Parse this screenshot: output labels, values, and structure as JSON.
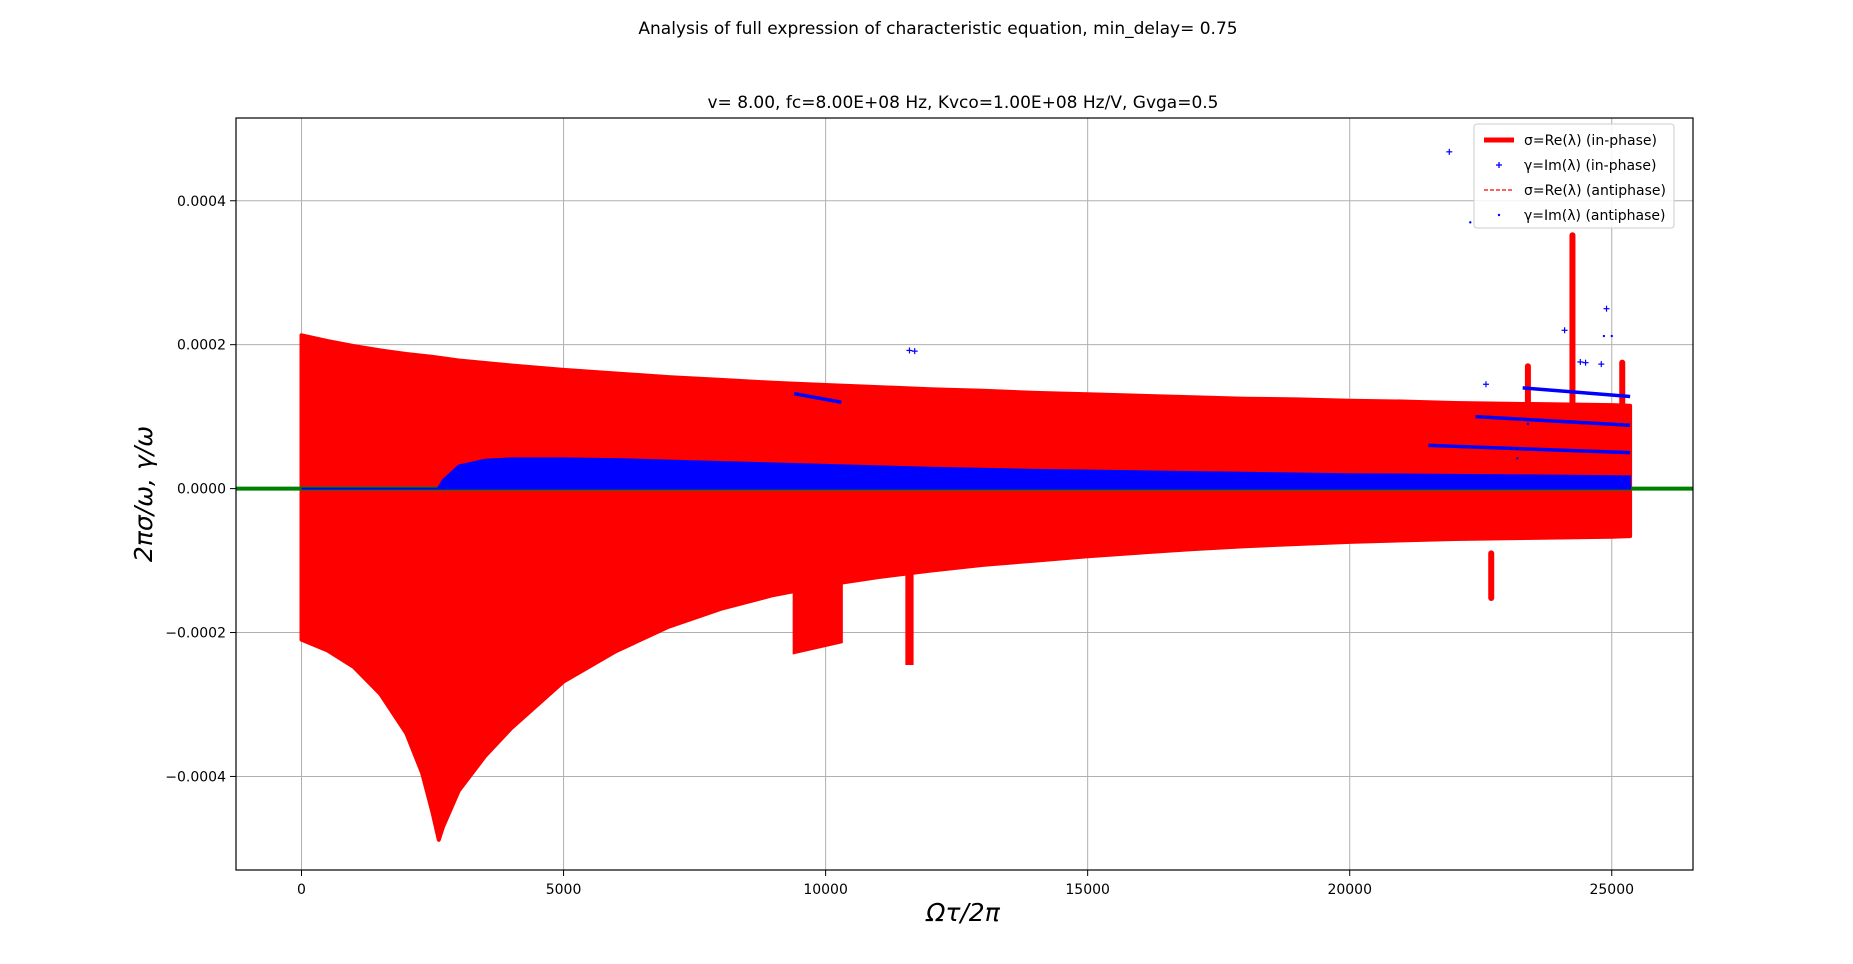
{
  "chart_data": {
    "type": "line",
    "suptitle": "Analysis of full expression of characteristic equation, min_delay= 0.75",
    "title": "v= 8.00, fc=8.00E+08 Hz, Kvco=1.00E+08 Hz/V, Gvga=0.5",
    "xlabel": "Ωτ/2π",
    "ylabel": "2πσ/ω, γ/ω",
    "xlim": [
      -1250,
      26550
    ],
    "ylim": [
      -0.00053,
      0.000515
    ],
    "x_ticks": [
      0,
      5000,
      10000,
      15000,
      20000,
      25000
    ],
    "x_tick_labels": [
      "0",
      "5000",
      "10000",
      "15000",
      "20000",
      "25000"
    ],
    "y_ticks": [
      -0.0004,
      -0.0002,
      0.0,
      0.0002,
      0.0004
    ],
    "y_tick_labels": [
      "−0.0004",
      "−0.0002",
      "0.0000",
      "0.0002",
      "0.0004"
    ],
    "grid": true,
    "legend_position": "upper-right",
    "colors": {
      "red": "#ff0000",
      "blue": "#0000ff",
      "green": "#008000"
    },
    "zero_line": {
      "y": 0.0,
      "color": "#008000"
    },
    "legend": [
      {
        "label": "σ=Re(λ) (in-phase)",
        "marker": "thick-line",
        "color": "#ff0000"
      },
      {
        "label": "γ=Im(λ) (in-phase)",
        "marker": "plus",
        "color": "#0000ff"
      },
      {
        "label": "σ=Re(λ) (antiphase)",
        "marker": "dashed-line",
        "color": "#ff0000"
      },
      {
        "label": "γ=Im(λ) (antiphase)",
        "marker": "dot",
        "color": "#0000ff"
      }
    ],
    "series": [
      {
        "name": "σ=Re(λ) (in-phase)",
        "color": "#ff0000",
        "upper_envelope": {
          "x": [
            0,
            500,
            1000,
            1500,
            2000,
            2500,
            3000,
            4000,
            5000,
            6000,
            7000,
            8000,
            9000,
            10000,
            11000,
            12000,
            13000,
            14000,
            15000,
            16000,
            17000,
            18000,
            19000,
            20000,
            21000,
            22000,
            23000,
            24000,
            25000,
            25350
          ],
          "y": [
            0.000213,
            0.000205,
            0.000198,
            0.000192,
            0.000187,
            0.000183,
            0.000178,
            0.000171,
            0.000165,
            0.00016,
            0.000155,
            0.000151,
            0.000147,
            0.000144,
            0.000141,
            0.000138,
            0.000136,
            0.000133,
            0.000131,
            0.000129,
            0.000127,
            0.000125,
            0.000124,
            0.000122,
            0.000121,
            0.000119,
            0.000118,
            0.000117,
            0.000116,
            0.000115
          ]
        },
        "lower_envelope": {
          "x": [
            0,
            500,
            1000,
            1500,
            2000,
            2300,
            2500,
            2620,
            2700,
            3000,
            3500,
            4000,
            5000,
            6000,
            7000,
            8000,
            9000,
            10000,
            11000,
            12000,
            13000,
            14000,
            15000,
            16000,
            17000,
            18000,
            19000,
            20000,
            21000,
            22000,
            23000,
            24000,
            25000,
            25350
          ],
          "y": [
            -0.00021,
            -0.000225,
            -0.000248,
            -0.000285,
            -0.00034,
            -0.000395,
            -0.00045,
            -0.000488,
            -0.00047,
            -0.00042,
            -0.000372,
            -0.000333,
            -0.000268,
            -0.000226,
            -0.000192,
            -0.000167,
            -0.000148,
            -0.000134,
            -0.000123,
            -0.000114,
            -0.000106,
            -0.0001,
            -9.4e-05,
            -8.9e-05,
            -8.4e-05,
            -8e-05,
            -7.7e-05,
            -7.4e-05,
            -7.2e-05,
            -7e-05,
            -6.9e-05,
            -6.8e-05,
            -6.7e-05,
            -6.6e-05
          ]
        },
        "excursions": [
          {
            "x": [
              9400,
              10300
            ],
            "y": [
              -0.000228,
              -0.000213
            ]
          },
          {
            "x": [
              11550,
              11650
            ],
            "y": [
              -0.000243,
              -0.000243
            ]
          },
          {
            "x": [
              24250,
              24250
            ],
            "y": [
              0.000352,
              0.000352
            ]
          },
          {
            "x": [
              23400,
              23400
            ],
            "y": [
              0.00017,
              0.00017
            ]
          },
          {
            "x": [
              25200,
              25200
            ],
            "y": [
              0.000175,
              0.000175
            ]
          },
          {
            "x": [
              22700,
              22700
            ],
            "y": [
              -0.000152,
              -0.000152
            ]
          }
        ]
      },
      {
        "name": "γ=Im(λ) (in-phase)",
        "color": "#0000ff",
        "band_upper": {
          "x": [
            0,
            2600,
            2700,
            3000,
            3500,
            4000,
            5000,
            6000,
            8000,
            10000,
            12000,
            14000,
            16000,
            18000,
            20000,
            22000,
            24000,
            25350
          ],
          "y": [
            0.0,
            0.0,
            1.2e-05,
            3.2e-05,
            4e-05,
            4.2e-05,
            4.2e-05,
            4.1e-05,
            3.7e-05,
            3.3e-05,
            2.9e-05,
            2.6e-05,
            2.4e-05,
            2.2e-05,
            2e-05,
            1.9e-05,
            1.8e-05,
            1.7e-05
          ]
        },
        "streaks": [
          {
            "x": [
              9400,
              10300
            ],
            "y": [
              0.000132,
              0.00012
            ]
          },
          {
            "x": [
              23300,
              25350
            ],
            "y": [
              0.00014,
              0.000128
            ]
          },
          {
            "x": [
              22400,
              25350
            ],
            "y": [
              0.0001,
              8.8e-05
            ]
          },
          {
            "x": [
              21500,
              25350
            ],
            "y": [
              6e-05,
              5e-05
            ]
          }
        ],
        "outliers": [
          {
            "x": 11600,
            "y": 0.000192
          },
          {
            "x": 11700,
            "y": 0.000191
          },
          {
            "x": 21900,
            "y": 0.000468
          },
          {
            "x": 22600,
            "y": 0.000145
          },
          {
            "x": 24900,
            "y": 0.00025
          },
          {
            "x": 24400,
            "y": 0.000176
          },
          {
            "x": 24500,
            "y": 0.000175
          },
          {
            "x": 24800,
            "y": 0.000173
          },
          {
            "x": 24100,
            "y": 0.00022
          }
        ]
      },
      {
        "name": "γ=Im(λ) (antiphase)",
        "color": "#0000ff",
        "outliers": [
          {
            "x": 22300,
            "y": 0.00037
          },
          {
            "x": 24850,
            "y": 0.000212
          },
          {
            "x": 25000,
            "y": 0.000212
          },
          {
            "x": 23400,
            "y": 9e-05
          },
          {
            "x": 23200,
            "y": 4.2e-05
          }
        ]
      }
    ]
  }
}
